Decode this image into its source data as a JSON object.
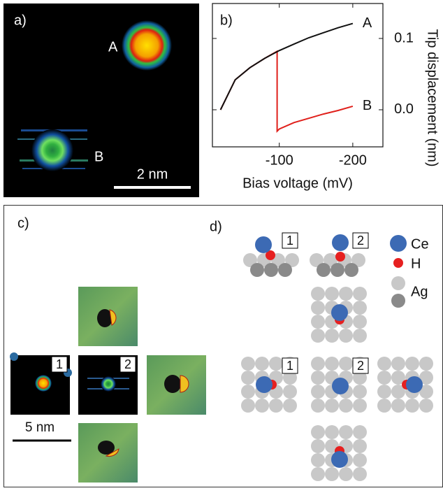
{
  "panels": {
    "a": {
      "label": "a)",
      "markers": [
        "A",
        "B"
      ],
      "scale_bar": "2 nm"
    },
    "b": {
      "label": "b)",
      "chart_data": {
        "type": "line",
        "xlabel": "Bias voltage (mV)",
        "ylabel": "Tip displacement (nm)",
        "xlim": [
          -9,
          -241
        ],
        "xticks": [
          -100,
          -200
        ],
        "ylim": [
          -0.052,
          0.149
        ],
        "yticks": [
          {
            "value": 0,
            "label": "0.0"
          },
          0.1
        ],
        "series": [
          {
            "name": "A",
            "color": "#111111",
            "x": [
              -20,
              -40,
              -60,
              -80,
              -100,
              -120,
              -140,
              -160,
              -180,
              -200
            ],
            "values": [
              0,
              0.042,
              0.059,
              0.072,
              0.083,
              0.092,
              0.101,
              0.108,
              0.115,
              0.121
            ]
          },
          {
            "name": "B",
            "color": "#e0201b",
            "x": [
              -20,
              -40,
              -60,
              -80,
              -97,
              -97,
              -100,
              -120,
              -140,
              -160,
              -180,
              -200
            ],
            "values": [
              0,
              0.042,
              0.059,
              0.072,
              0.082,
              -0.03,
              -0.027,
              -0.018,
              -0.012,
              -0.006,
              -0.001,
              0.005
            ]
          }
        ]
      }
    },
    "c": {
      "label": "c)",
      "image_labels": [
        "1",
        "2"
      ],
      "scale_bar": "5 nm"
    },
    "d": {
      "label": "d)",
      "model_labels": [
        "1",
        "2",
        "1",
        "2"
      ],
      "legend": [
        "Ce",
        "H",
        "Ag"
      ]
    }
  }
}
